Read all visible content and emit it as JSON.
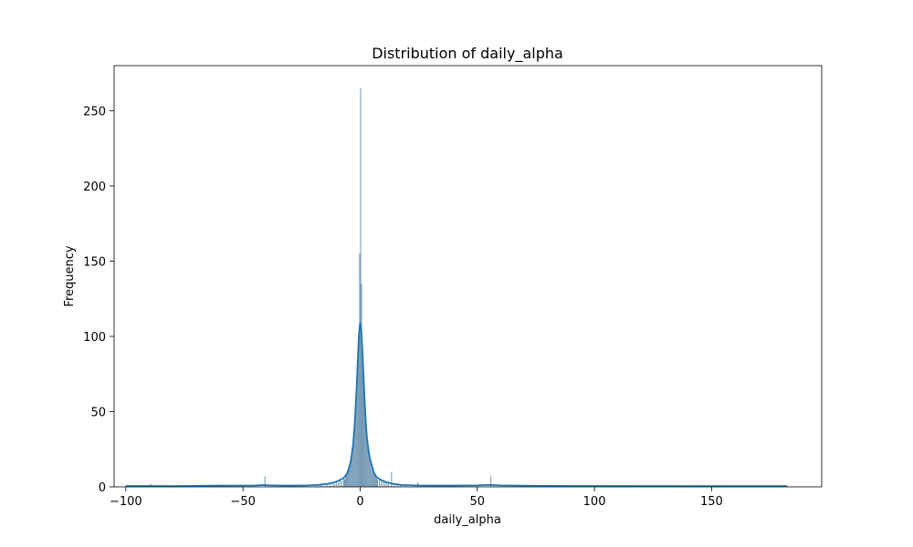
{
  "chart_data": {
    "type": "histogram",
    "title": "Distribution of daily_alpha",
    "xlabel": "daily_alpha",
    "ylabel": "Frequency",
    "xlim": [
      -105,
      197
    ],
    "ylim": [
      0,
      280
    ],
    "xticks": [
      -100,
      -50,
      0,
      50,
      100,
      150
    ],
    "xtick_labels": [
      "−100",
      "−50",
      "0",
      "50",
      "100",
      "150"
    ],
    "yticks": [
      0,
      50,
      100,
      150,
      200,
      250
    ],
    "ytick_labels": [
      "0",
      "50",
      "100",
      "150",
      "200",
      "250"
    ],
    "bin_width": 0.4,
    "bar_color": "#6d93b0",
    "kde_color": "#1f77b4",
    "grid": false,
    "bins": [
      {
        "x": -19.2,
        "count": 1
      },
      {
        "x": -18.0,
        "count": 1
      },
      {
        "x": -16.8,
        "count": 2
      },
      {
        "x": -15.6,
        "count": 1
      },
      {
        "x": -14.4,
        "count": 2
      },
      {
        "x": -13.2,
        "count": 2
      },
      {
        "x": -12.0,
        "count": 3
      },
      {
        "x": -11.2,
        "count": 2
      },
      {
        "x": -10.4,
        "count": 4
      },
      {
        "x": -9.6,
        "count": 3
      },
      {
        "x": -8.8,
        "count": 5
      },
      {
        "x": -8.0,
        "count": 4
      },
      {
        "x": -7.2,
        "count": 6
      },
      {
        "x": -6.8,
        "count": 5
      },
      {
        "x": -6.4,
        "count": 8
      },
      {
        "x": -6.0,
        "count": 9
      },
      {
        "x": -5.6,
        "count": 11
      },
      {
        "x": -5.2,
        "count": 10
      },
      {
        "x": -4.8,
        "count": 14
      },
      {
        "x": -4.4,
        "count": 16
      },
      {
        "x": -4.0,
        "count": 20
      },
      {
        "x": -3.6,
        "count": 24
      },
      {
        "x": -3.2,
        "count": 28
      },
      {
        "x": -2.8,
        "count": 36
      },
      {
        "x": -2.4,
        "count": 42
      },
      {
        "x": -2.0,
        "count": 55
      },
      {
        "x": -1.6,
        "count": 62
      },
      {
        "x": -1.2,
        "count": 78
      },
      {
        "x": -0.8,
        "count": 95
      },
      {
        "x": -0.4,
        "count": 155
      },
      {
        "x": 0.0,
        "count": 265
      },
      {
        "x": 0.4,
        "count": 135
      },
      {
        "x": 0.8,
        "count": 88
      },
      {
        "x": 1.2,
        "count": 70
      },
      {
        "x": 1.6,
        "count": 58
      },
      {
        "x": 2.0,
        "count": 48
      },
      {
        "x": 2.4,
        "count": 40
      },
      {
        "x": 2.8,
        "count": 32
      },
      {
        "x": 3.2,
        "count": 26
      },
      {
        "x": 3.6,
        "count": 22
      },
      {
        "x": 4.0,
        "count": 18
      },
      {
        "x": 4.4,
        "count": 15
      },
      {
        "x": 4.8,
        "count": 12
      },
      {
        "x": 5.2,
        "count": 10
      },
      {
        "x": 5.6,
        "count": 9
      },
      {
        "x": 6.0,
        "count": 8
      },
      {
        "x": 6.4,
        "count": 7
      },
      {
        "x": 6.8,
        "count": 6
      },
      {
        "x": 7.2,
        "count": 5
      },
      {
        "x": 8.0,
        "count": 5
      },
      {
        "x": 8.8,
        "count": 4
      },
      {
        "x": 9.6,
        "count": 4
      },
      {
        "x": 10.4,
        "count": 3
      },
      {
        "x": 11.2,
        "count": 3
      },
      {
        "x": 12.0,
        "count": 3
      },
      {
        "x": 13.2,
        "count": 10
      },
      {
        "x": 14.4,
        "count": 2
      },
      {
        "x": 15.6,
        "count": 2
      },
      {
        "x": 17.2,
        "count": 1
      },
      {
        "x": 19.2,
        "count": 1
      },
      {
        "x": 24.4,
        "count": 3
      },
      {
        "x": -40.8,
        "count": 7
      },
      {
        "x": -89.6,
        "count": 2
      },
      {
        "x": -99.6,
        "count": 1
      },
      {
        "x": -60.0,
        "count": 1
      },
      {
        "x": -30.0,
        "count": 1
      },
      {
        "x": 30.0,
        "count": 1
      },
      {
        "x": 55.6,
        "count": 7
      },
      {
        "x": 65.2,
        "count": 1
      },
      {
        "x": 95.6,
        "count": 1
      },
      {
        "x": 115.2,
        "count": 1
      },
      {
        "x": 182.0,
        "count": 1
      }
    ],
    "kde": {
      "x": [
        -100,
        -80,
        -60,
        -45,
        -42,
        -38,
        -30,
        -22,
        -18,
        -14,
        -11,
        -9,
        -7,
        -6,
        -5,
        -4,
        -3,
        -2.5,
        -2,
        -1.5,
        -1,
        -0.5,
        0,
        0.5,
        1,
        1.5,
        2,
        2.5,
        3,
        4,
        5,
        6,
        7,
        9,
        11,
        14,
        18,
        25,
        35,
        50,
        55,
        60,
        75,
        100,
        140,
        182
      ],
      "y": [
        0.6,
        0.5,
        0.8,
        0.9,
        1.2,
        1.0,
        0.8,
        1.0,
        1.3,
        2.0,
        3.0,
        4.2,
        6.0,
        7.8,
        11,
        17,
        28,
        38,
        51,
        66,
        84,
        102,
        109,
        104,
        90,
        72,
        55,
        41,
        31,
        20,
        14,
        9,
        6.5,
        4.5,
        3.2,
        2.0,
        1.2,
        0.9,
        0.8,
        1.0,
        1.3,
        1.0,
        0.7,
        0.6,
        0.5,
        0.5
      ]
    }
  }
}
